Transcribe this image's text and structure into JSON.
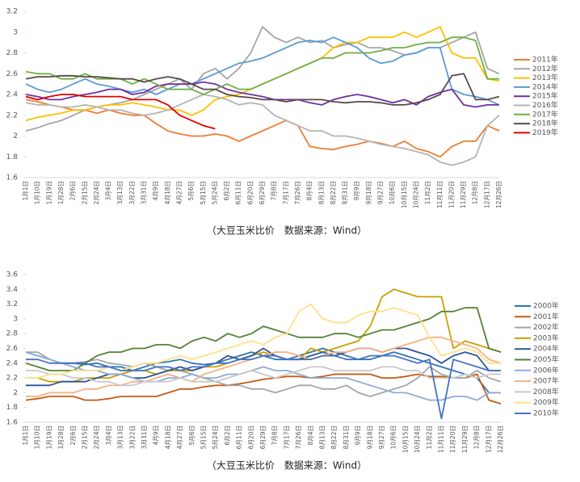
{
  "chart_data": [
    {
      "type": "line",
      "caption": "（大豆玉米比价　数据来源：Wind）",
      "categories": [
        "1月1日",
        "1月10日",
        "1月19日",
        "1月28日",
        "2月6日",
        "2月15日",
        "2月24日",
        "3月4日",
        "3月13日",
        "3月22日",
        "3月31日",
        "4月9日",
        "4月18日",
        "4月27日",
        "5月6日",
        "5月15日",
        "5月24日",
        "6月2日",
        "6月11日",
        "6月20日",
        "6月29日",
        "7月8日",
        "7月17日",
        "7月26日",
        "8月4日",
        "8月13日",
        "8月22日",
        "8月31日",
        "9月9日",
        "9月18日",
        "9月27日",
        "10月6日",
        "10月15日",
        "10月24日",
        "11月2日",
        "11月11日",
        "11月20日",
        "11月29日",
        "12月8日",
        "12月17日",
        "12月26日"
      ],
      "ylim": [
        1.6,
        3.2
      ],
      "yticks": [
        1.6,
        1.8,
        2,
        2.2,
        2.4,
        2.6,
        2.8,
        3,
        3.2
      ],
      "grid": false,
      "legend": "right",
      "series": [
        {
          "name": "2011年",
          "color": "#ed7d31",
          "values": [
            2.35,
            2.33,
            2.3,
            2.28,
            2.25,
            2.25,
            2.22,
            2.25,
            2.22,
            2.2,
            2.2,
            2.12,
            2.05,
            2.02,
            2.0,
            2.0,
            2.02,
            2.0,
            1.95,
            2.0,
            2.05,
            2.1,
            2.15,
            2.1,
            1.9,
            1.88,
            1.87,
            1.9,
            1.92,
            1.95,
            1.93,
            1.9,
            1.95,
            1.88,
            1.85,
            1.8,
            1.9,
            1.95,
            1.95,
            2.1,
            2.05
          ]
        },
        {
          "name": "2012年",
          "color": "#a5a5a5",
          "values": [
            2.05,
            2.08,
            2.12,
            2.15,
            2.2,
            2.25,
            2.28,
            2.3,
            2.32,
            2.35,
            2.4,
            2.45,
            2.5,
            2.55,
            2.45,
            2.6,
            2.65,
            2.55,
            2.65,
            2.8,
            3.05,
            2.95,
            2.9,
            2.95,
            2.9,
            2.92,
            2.85,
            2.88,
            2.9,
            2.85,
            2.85,
            2.82,
            2.78,
            2.8,
            2.85,
            2.85,
            2.9,
            2.95,
            3.0,
            2.65,
            2.6
          ]
        },
        {
          "name": "2013年",
          "color": "#ffc000",
          "values": [
            2.15,
            2.18,
            2.2,
            2.22,
            2.25,
            2.25,
            2.28,
            2.3,
            2.3,
            2.32,
            2.3,
            2.28,
            2.25,
            2.25,
            2.2,
            2.25,
            2.35,
            2.38,
            2.4,
            2.45,
            2.5,
            2.55,
            2.6,
            2.65,
            2.7,
            2.75,
            2.85,
            2.9,
            2.9,
            2.95,
            2.95,
            2.95,
            3.0,
            2.95,
            3.0,
            3.05,
            2.8,
            2.75,
            2.75,
            2.55,
            2.53
          ]
        },
        {
          "name": "2014年",
          "color": "#5b9bd5",
          "values": [
            2.5,
            2.45,
            2.42,
            2.45,
            2.5,
            2.55,
            2.5,
            2.48,
            2.45,
            2.42,
            2.45,
            2.4,
            2.45,
            2.5,
            2.5,
            2.55,
            2.6,
            2.65,
            2.7,
            2.72,
            2.75,
            2.8,
            2.85,
            2.9,
            2.92,
            2.9,
            2.95,
            2.9,
            2.85,
            2.75,
            2.7,
            2.72,
            2.78,
            2.8,
            2.85,
            2.85,
            2.45,
            2.4,
            2.38,
            2.35,
            2.3
          ]
        },
        {
          "name": "2015年",
          "color": "#7030a0",
          "values": [
            2.4,
            2.38,
            2.35,
            2.35,
            2.38,
            2.4,
            2.42,
            2.45,
            2.45,
            2.4,
            2.42,
            2.48,
            2.5,
            2.5,
            2.5,
            2.52,
            2.5,
            2.45,
            2.42,
            2.4,
            2.38,
            2.35,
            2.35,
            2.35,
            2.32,
            2.3,
            2.35,
            2.38,
            2.4,
            2.38,
            2.35,
            2.32,
            2.35,
            2.3,
            2.38,
            2.42,
            2.45,
            2.3,
            2.28,
            2.3,
            2.3
          ]
        },
        {
          "name": "2016年",
          "color": "#b4b4b4",
          "values": [
            2.32,
            2.3,
            2.3,
            2.28,
            2.28,
            2.3,
            2.28,
            2.25,
            2.25,
            2.22,
            2.2,
            2.22,
            2.25,
            2.3,
            2.35,
            2.4,
            2.38,
            2.35,
            2.3,
            2.32,
            2.3,
            2.2,
            2.15,
            2.1,
            2.05,
            2.05,
            2.0,
            2.0,
            1.98,
            1.95,
            1.92,
            1.9,
            1.88,
            1.85,
            1.82,
            1.75,
            1.72,
            1.75,
            1.8,
            2.1,
            2.2
          ]
        },
        {
          "name": "2017年",
          "color": "#70ad47",
          "values": [
            2.62,
            2.6,
            2.6,
            2.55,
            2.55,
            2.6,
            2.55,
            2.55,
            2.55,
            2.5,
            2.55,
            2.5,
            2.45,
            2.45,
            2.45,
            2.4,
            2.45,
            2.5,
            2.45,
            2.45,
            2.5,
            2.55,
            2.6,
            2.65,
            2.7,
            2.75,
            2.75,
            2.8,
            2.8,
            2.8,
            2.82,
            2.85,
            2.85,
            2.88,
            2.9,
            2.9,
            2.95,
            2.95,
            2.92,
            2.55,
            2.55
          ]
        },
        {
          "name": "2018年",
          "color": "#5a4a4a",
          "values": [
            2.55,
            2.57,
            2.57,
            2.58,
            2.58,
            2.57,
            2.57,
            2.56,
            2.55,
            2.55,
            2.52,
            2.55,
            2.57,
            2.55,
            2.5,
            2.45,
            2.45,
            2.4,
            2.38,
            2.37,
            2.35,
            2.35,
            2.33,
            2.35,
            2.35,
            2.35,
            2.33,
            2.32,
            2.33,
            2.33,
            2.32,
            2.3,
            2.3,
            2.32,
            2.35,
            2.4,
            2.58,
            2.6,
            2.35,
            2.35,
            2.38
          ]
        },
        {
          "name": "2019年",
          "color": "#e00000",
          "values": [
            2.38,
            2.35,
            2.38,
            2.4,
            2.4,
            2.38,
            2.38,
            2.38,
            2.38,
            2.35,
            2.35,
            2.35,
            2.3,
            2.2,
            2.15,
            2.1,
            2.07,
            null,
            null,
            null,
            null,
            null,
            null,
            null,
            null,
            null,
            null,
            null,
            null,
            null,
            null,
            null,
            null,
            null,
            null,
            null,
            null,
            null,
            null,
            null,
            null
          ]
        }
      ]
    },
    {
      "type": "line",
      "caption": "（大豆玉米比价　数据来源：Wind）",
      "categories": [
        "1月1日",
        "1月10日",
        "1月19日",
        "1月28日",
        "2月6日",
        "2月15日",
        "2月24日",
        "3月4日",
        "3月13日",
        "3月22日",
        "3月31日",
        "4月9日",
        "4月18日",
        "4月27日",
        "5月6日",
        "5月15日",
        "5月24日",
        "6月2日",
        "6月11日",
        "6月20日",
        "6月29日",
        "7月8日",
        "7月17日",
        "7月26日",
        "8月4日",
        "8月13日",
        "8月22日",
        "8月31日",
        "9月9日",
        "9月18日",
        "9月27日",
        "10月6日",
        "10月15日",
        "10月24日",
        "11月2日",
        "11月11日",
        "11月20日",
        "11月29日",
        "12月8日",
        "12月17日",
        "12月26日"
      ],
      "ylim": [
        1.6,
        3.6
      ],
      "yticks": [
        1.6,
        1.8,
        2,
        2.2,
        2.4,
        2.6,
        2.8,
        3,
        3.2,
        3.4,
        3.6
      ],
      "grid": false,
      "legend": "right",
      "series": [
        {
          "name": "2000年",
          "color": "#2e75b6",
          "values": [
            2.55,
            2.5,
            2.45,
            2.4,
            2.4,
            2.38,
            2.4,
            2.35,
            2.35,
            2.3,
            2.35,
            2.4,
            2.42,
            2.45,
            2.4,
            2.38,
            2.4,
            2.45,
            2.5,
            2.55,
            2.5,
            2.45,
            2.45,
            2.5,
            2.55,
            2.6,
            2.55,
            2.5,
            2.45,
            2.45,
            2.5,
            2.55,
            2.5,
            2.45,
            2.4,
            2.35,
            2.3,
            2.25,
            2.2,
            2.0,
            2.0
          ]
        },
        {
          "name": "2001年",
          "color": "#c55a11",
          "values": [
            1.9,
            1.92,
            1.95,
            1.95,
            1.95,
            1.9,
            1.9,
            1.92,
            1.95,
            1.95,
            1.95,
            1.95,
            2.0,
            2.05,
            2.05,
            2.08,
            2.1,
            2.1,
            2.12,
            2.15,
            2.18,
            2.2,
            2.22,
            2.22,
            2.2,
            2.22,
            2.25,
            2.25,
            2.25,
            2.25,
            2.2,
            2.2,
            2.22,
            2.25,
            2.22,
            2.22,
            2.2,
            2.2,
            2.25,
            1.9,
            1.85
          ]
        },
        {
          "name": "2002年",
          "color": "#a5a5a5",
          "values": [
            2.55,
            2.55,
            2.45,
            2.4,
            2.4,
            2.42,
            2.45,
            2.4,
            2.38,
            2.35,
            2.4,
            2.35,
            2.3,
            2.3,
            2.25,
            2.2,
            2.15,
            2.1,
            2.1,
            2.05,
            2.05,
            2.0,
            2.05,
            2.1,
            2.1,
            2.05,
            2.05,
            2.1,
            2.0,
            1.95,
            2.0,
            2.05,
            2.1,
            2.2,
            2.35,
            2.25,
            2.2,
            2.2,
            2.3,
            2.2,
            2.15
          ]
        },
        {
          "name": "2003年",
          "color": "#c9a000",
          "values": [
            2.2,
            2.2,
            2.15,
            2.15,
            2.15,
            2.2,
            2.2,
            2.2,
            2.25,
            2.3,
            2.3,
            2.25,
            2.3,
            2.3,
            2.3,
            2.35,
            2.35,
            2.4,
            2.45,
            2.5,
            2.55,
            2.5,
            2.45,
            2.45,
            2.6,
            2.55,
            2.6,
            2.65,
            2.7,
            2.9,
            3.3,
            3.4,
            3.35,
            3.3,
            3.3,
            3.3,
            2.6,
            2.7,
            2.65,
            2.6,
            2.55
          ]
        },
        {
          "name": "2004年",
          "color": "#2f5597",
          "values": [
            2.1,
            2.1,
            2.1,
            2.15,
            2.15,
            2.15,
            2.2,
            2.25,
            2.25,
            2.2,
            2.2,
            2.25,
            2.3,
            2.35,
            2.3,
            2.35,
            2.4,
            2.5,
            2.45,
            2.5,
            2.6,
            2.5,
            2.45,
            2.45,
            2.5,
            2.55,
            2.5,
            2.55,
            2.6,
            2.6,
            2.55,
            2.6,
            2.6,
            2.55,
            2.5,
            2.4,
            2.5,
            2.55,
            2.5,
            2.3,
            2.3
          ]
        },
        {
          "name": "2005年",
          "color": "#548235",
          "values": [
            2.4,
            2.35,
            2.3,
            2.3,
            2.3,
            2.4,
            2.5,
            2.55,
            2.55,
            2.6,
            2.6,
            2.65,
            2.65,
            2.6,
            2.7,
            2.75,
            2.7,
            2.8,
            2.75,
            2.8,
            2.9,
            2.85,
            2.8,
            2.75,
            2.75,
            2.75,
            2.8,
            2.8,
            2.75,
            2.8,
            2.85,
            2.85,
            2.9,
            2.95,
            3.0,
            3.1,
            3.1,
            3.15,
            3.15,
            2.6,
            2.55
          ]
        },
        {
          "name": "2006年",
          "color": "#8faadc",
          "values": [
            2.55,
            2.5,
            2.45,
            2.4,
            2.35,
            2.3,
            2.3,
            2.25,
            2.25,
            2.2,
            2.15,
            2.15,
            2.2,
            2.2,
            2.25,
            2.2,
            2.2,
            2.25,
            2.25,
            2.3,
            2.35,
            2.3,
            2.3,
            2.25,
            2.2,
            2.2,
            2.2,
            2.2,
            2.15,
            2.1,
            2.05,
            2.0,
            2.0,
            1.95,
            1.9,
            1.9,
            1.95,
            1.95,
            1.9,
            2.0,
            2.0
          ]
        },
        {
          "name": "2007年",
          "color": "#f4b183",
          "values": [
            1.95,
            1.95,
            2.0,
            2.0,
            2.0,
            2.05,
            2.05,
            2.1,
            2.1,
            2.15,
            2.15,
            2.2,
            2.25,
            2.2,
            2.15,
            2.25,
            2.3,
            2.35,
            2.4,
            2.45,
            2.5,
            2.55,
            2.55,
            2.5,
            2.45,
            2.5,
            2.55,
            2.55,
            2.6,
            2.6,
            2.55,
            2.6,
            2.65,
            2.7,
            2.75,
            2.75,
            2.7,
            2.65,
            2.6,
            2.45,
            2.4
          ]
        },
        {
          "name": "2008年",
          "color": "#c9c9c9",
          "values": [
            2.3,
            2.3,
            2.25,
            2.25,
            2.2,
            2.2,
            2.15,
            2.15,
            2.1,
            2.1,
            2.15,
            2.15,
            2.15,
            2.2,
            2.15,
            2.15,
            2.15,
            2.2,
            2.25,
            2.3,
            2.25,
            2.2,
            2.25,
            2.3,
            2.35,
            2.35,
            2.3,
            2.3,
            2.3,
            2.3,
            2.35,
            2.35,
            2.3,
            2.3,
            2.2,
            2.2,
            2.2,
            2.25,
            2.2,
            2.25,
            2.25
          ]
        },
        {
          "name": "2009年",
          "color": "#ffe08a",
          "values": [
            2.2,
            2.2,
            2.25,
            2.25,
            2.3,
            2.3,
            2.3,
            2.35,
            2.3,
            2.35,
            2.4,
            2.4,
            2.45,
            2.5,
            2.45,
            2.5,
            2.55,
            2.6,
            2.65,
            2.7,
            2.65,
            2.75,
            2.8,
            3.1,
            3.2,
            3.0,
            2.95,
            2.95,
            3.05,
            3.1,
            3.1,
            3.15,
            3.1,
            3.05,
            2.75,
            2.5,
            2.55,
            2.6,
            2.55,
            2.4,
            2.4
          ]
        },
        {
          "name": "2010年",
          "color": "#4472c4",
          "values": [
            2.45,
            2.45,
            2.4,
            2.4,
            2.4,
            2.4,
            2.35,
            2.35,
            2.3,
            2.3,
            2.3,
            2.35,
            2.35,
            2.3,
            2.35,
            2.35,
            2.4,
            2.4,
            2.45,
            2.45,
            2.5,
            2.5,
            2.45,
            2.45,
            2.45,
            2.5,
            2.5,
            2.45,
            2.45,
            2.5,
            2.5,
            2.5,
            2.45,
            2.4,
            2.45,
            1.65,
            2.45,
            2.4,
            2.35,
            2.3,
            2.3
          ]
        }
      ]
    }
  ]
}
